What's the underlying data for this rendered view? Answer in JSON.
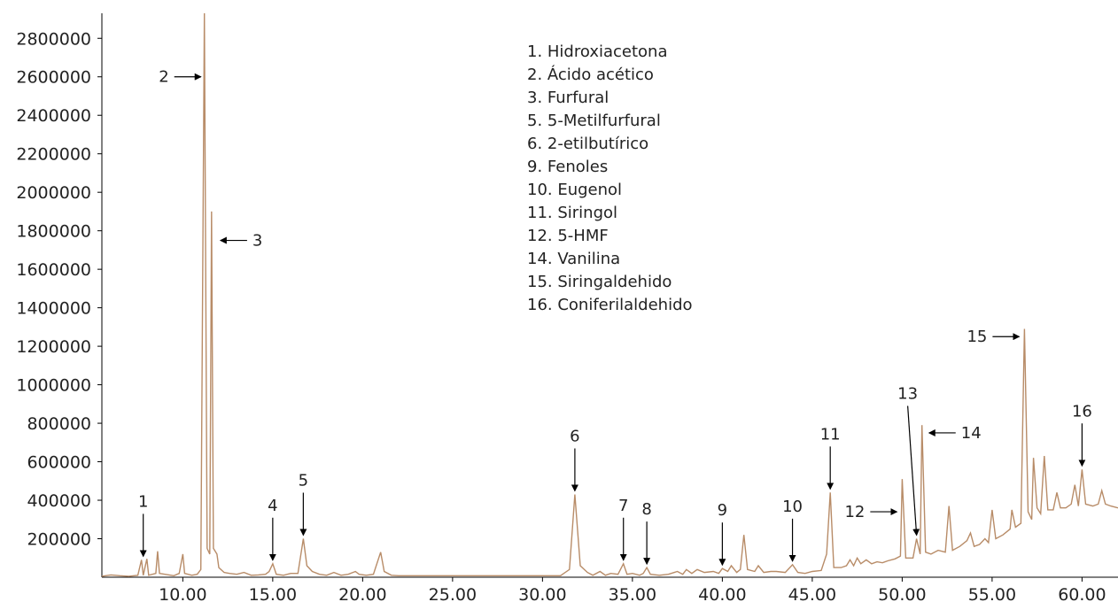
{
  "chart_data": {
    "type": "line",
    "series_color": "#b88c68",
    "xlim": [
      5.5,
      62
    ],
    "ylim": [
      0,
      2930000
    ],
    "x_ticks": [
      "10.00",
      "15.00",
      "20.00",
      "25.00",
      "30.00",
      "35.00",
      "40.00",
      "45.00",
      "50.00",
      "55.00",
      "60.00"
    ],
    "y_ticks": [
      "200000",
      "400000",
      "600000",
      "800000",
      "1000000",
      "1200000",
      "1400000",
      "1600000",
      "1800000",
      "2000000",
      "2200000",
      "2400000",
      "2600000",
      "2800000"
    ],
    "legend": [
      "1. Hidroxiacetona",
      "2. Ácido acético",
      "3. Furfural",
      "5. 5-Metilfurfural",
      "6. 2-etilbutírico",
      "9. Fenoles",
      "10. Eugenol",
      "11. Siringol",
      "12. 5-HMF",
      "14. Vanilina",
      "15. Siringaldehido",
      "16. Coniferilaldehido"
    ],
    "points": [
      [
        5.5,
        5000
      ],
      [
        6.0,
        12000
      ],
      [
        6.5,
        8000
      ],
      [
        7.0,
        5000
      ],
      [
        7.5,
        10000
      ],
      [
        7.7,
        90000
      ],
      [
        7.8,
        10000
      ],
      [
        8.0,
        95000
      ],
      [
        8.1,
        10000
      ],
      [
        8.5,
        20000
      ],
      [
        8.6,
        135000
      ],
      [
        8.7,
        20000
      ],
      [
        9.0,
        15000
      ],
      [
        9.5,
        8000
      ],
      [
        9.8,
        20000
      ],
      [
        10.0,
        120000
      ],
      [
        10.1,
        20000
      ],
      [
        10.5,
        10000
      ],
      [
        10.8,
        15000
      ],
      [
        11.0,
        40000
      ],
      [
        11.2,
        2930000
      ],
      [
        11.35,
        150000
      ],
      [
        11.5,
        120000
      ],
      [
        11.6,
        1900000
      ],
      [
        11.7,
        150000
      ],
      [
        11.9,
        120000
      ],
      [
        12.0,
        50000
      ],
      [
        12.3,
        25000
      ],
      [
        12.6,
        20000
      ],
      [
        13.0,
        15000
      ],
      [
        13.4,
        25000
      ],
      [
        13.8,
        10000
      ],
      [
        14.2,
        12000
      ],
      [
        14.6,
        15000
      ],
      [
        14.8,
        30000
      ],
      [
        15.0,
        70000
      ],
      [
        15.2,
        15000
      ],
      [
        15.6,
        10000
      ],
      [
        16.0,
        20000
      ],
      [
        16.4,
        20000
      ],
      [
        16.7,
        200000
      ],
      [
        16.9,
        60000
      ],
      [
        17.2,
        30000
      ],
      [
        17.6,
        15000
      ],
      [
        18.0,
        10000
      ],
      [
        18.4,
        25000
      ],
      [
        18.8,
        10000
      ],
      [
        19.2,
        15000
      ],
      [
        19.6,
        30000
      ],
      [
        19.8,
        15000
      ],
      [
        20.2,
        10000
      ],
      [
        20.6,
        15000
      ],
      [
        21.0,
        130000
      ],
      [
        21.2,
        30000
      ],
      [
        21.6,
        10000
      ],
      [
        22.0,
        8000
      ],
      [
        23.0,
        8000
      ],
      [
        24.0,
        8000
      ],
      [
        25.0,
        8000
      ],
      [
        26.0,
        8000
      ],
      [
        27.0,
        8000
      ],
      [
        28.0,
        8000
      ],
      [
        29.0,
        8000
      ],
      [
        30.0,
        8000
      ],
      [
        31.0,
        8000
      ],
      [
        31.5,
        40000
      ],
      [
        31.8,
        430000
      ],
      [
        32.1,
        60000
      ],
      [
        32.5,
        25000
      ],
      [
        32.8,
        10000
      ],
      [
        33.2,
        30000
      ],
      [
        33.5,
        10000
      ],
      [
        33.8,
        20000
      ],
      [
        34.2,
        15000
      ],
      [
        34.5,
        70000
      ],
      [
        34.7,
        15000
      ],
      [
        35.0,
        20000
      ],
      [
        35.4,
        10000
      ],
      [
        35.6,
        20000
      ],
      [
        35.8,
        50000
      ],
      [
        36.0,
        15000
      ],
      [
        36.5,
        10000
      ],
      [
        37.0,
        15000
      ],
      [
        37.5,
        30000
      ],
      [
        37.8,
        15000
      ],
      [
        38.0,
        40000
      ],
      [
        38.3,
        20000
      ],
      [
        38.6,
        40000
      ],
      [
        39.0,
        25000
      ],
      [
        39.5,
        30000
      ],
      [
        39.8,
        20000
      ],
      [
        40.0,
        45000
      ],
      [
        40.3,
        30000
      ],
      [
        40.5,
        60000
      ],
      [
        40.8,
        25000
      ],
      [
        41.0,
        40000
      ],
      [
        41.2,
        220000
      ],
      [
        41.4,
        40000
      ],
      [
        41.8,
        30000
      ],
      [
        42.0,
        60000
      ],
      [
        42.3,
        25000
      ],
      [
        42.7,
        30000
      ],
      [
        43.0,
        30000
      ],
      [
        43.5,
        25000
      ],
      [
        43.9,
        65000
      ],
      [
        44.2,
        25000
      ],
      [
        44.6,
        20000
      ],
      [
        45.0,
        30000
      ],
      [
        45.5,
        35000
      ],
      [
        45.8,
        120000
      ],
      [
        46.0,
        440000
      ],
      [
        46.2,
        50000
      ],
      [
        46.6,
        50000
      ],
      [
        46.9,
        60000
      ],
      [
        47.1,
        90000
      ],
      [
        47.3,
        60000
      ],
      [
        47.5,
        100000
      ],
      [
        47.7,
        70000
      ],
      [
        48.0,
        90000
      ],
      [
        48.3,
        70000
      ],
      [
        48.6,
        80000
      ],
      [
        48.9,
        75000
      ],
      [
        49.2,
        85000
      ],
      [
        49.6,
        95000
      ],
      [
        49.9,
        110000
      ],
      [
        50.0,
        510000
      ],
      [
        50.2,
        100000
      ],
      [
        50.6,
        100000
      ],
      [
        50.8,
        200000
      ],
      [
        51.0,
        120000
      ],
      [
        51.1,
        790000
      ],
      [
        51.3,
        130000
      ],
      [
        51.6,
        120000
      ],
      [
        52.0,
        140000
      ],
      [
        52.4,
        130000
      ],
      [
        52.6,
        370000
      ],
      [
        52.8,
        140000
      ],
      [
        53.2,
        160000
      ],
      [
        53.6,
        190000
      ],
      [
        53.8,
        230000
      ],
      [
        54.0,
        160000
      ],
      [
        54.3,
        170000
      ],
      [
        54.6,
        200000
      ],
      [
        54.8,
        180000
      ],
      [
        55.0,
        350000
      ],
      [
        55.2,
        200000
      ],
      [
        55.6,
        220000
      ],
      [
        56.0,
        250000
      ],
      [
        56.1,
        350000
      ],
      [
        56.3,
        260000
      ],
      [
        56.6,
        280000
      ],
      [
        56.8,
        1290000
      ],
      [
        57.0,
        340000
      ],
      [
        57.2,
        300000
      ],
      [
        57.3,
        620000
      ],
      [
        57.5,
        360000
      ],
      [
        57.7,
        330000
      ],
      [
        57.9,
        630000
      ],
      [
        58.1,
        350000
      ],
      [
        58.4,
        350000
      ],
      [
        58.6,
        440000
      ],
      [
        58.8,
        360000
      ],
      [
        59.1,
        360000
      ],
      [
        59.4,
        380000
      ],
      [
        59.6,
        480000
      ],
      [
        59.8,
        370000
      ],
      [
        60.0,
        560000
      ],
      [
        60.2,
        380000
      ],
      [
        60.6,
        370000
      ],
      [
        60.9,
        380000
      ],
      [
        61.1,
        450000
      ],
      [
        61.3,
        380000
      ],
      [
        61.6,
        370000
      ],
      [
        62.0,
        360000
      ]
    ],
    "peak_annotations": [
      {
        "label": "1",
        "x": 7.8,
        "y": 90000,
        "dir": "down"
      },
      {
        "label": "2",
        "x": 11.2,
        "y": 2600000,
        "dir": "right"
      },
      {
        "label": "3",
        "x": 11.8,
        "y": 1750000,
        "dir": "left"
      },
      {
        "label": "4",
        "x": 15.0,
        "y": 70000,
        "dir": "down"
      },
      {
        "label": "5",
        "x": 16.7,
        "y": 200000,
        "dir": "down"
      },
      {
        "label": "6",
        "x": 31.8,
        "y": 430000,
        "dir": "down"
      },
      {
        "label": "7",
        "x": 34.5,
        "y": 70000,
        "dir": "down"
      },
      {
        "label": "8",
        "x": 35.8,
        "y": 50000,
        "dir": "down"
      },
      {
        "label": "9",
        "x": 40.0,
        "y": 45000,
        "dir": "down"
      },
      {
        "label": "10",
        "x": 43.9,
        "y": 65000,
        "dir": "down"
      },
      {
        "label": "11",
        "x": 46.0,
        "y": 440000,
        "dir": "down"
      },
      {
        "label": "12",
        "x": 49.9,
        "y": 340000,
        "dir": "right"
      },
      {
        "label": "13",
        "x": 50.8,
        "y": 200000,
        "dir": "down"
      },
      {
        "label": "14",
        "x": 51.2,
        "y": 750000,
        "dir": "left"
      },
      {
        "label": "15",
        "x": 56.7,
        "y": 1250000,
        "dir": "right"
      },
      {
        "label": "16",
        "x": 60.0,
        "y": 560000,
        "dir": "down"
      }
    ]
  }
}
